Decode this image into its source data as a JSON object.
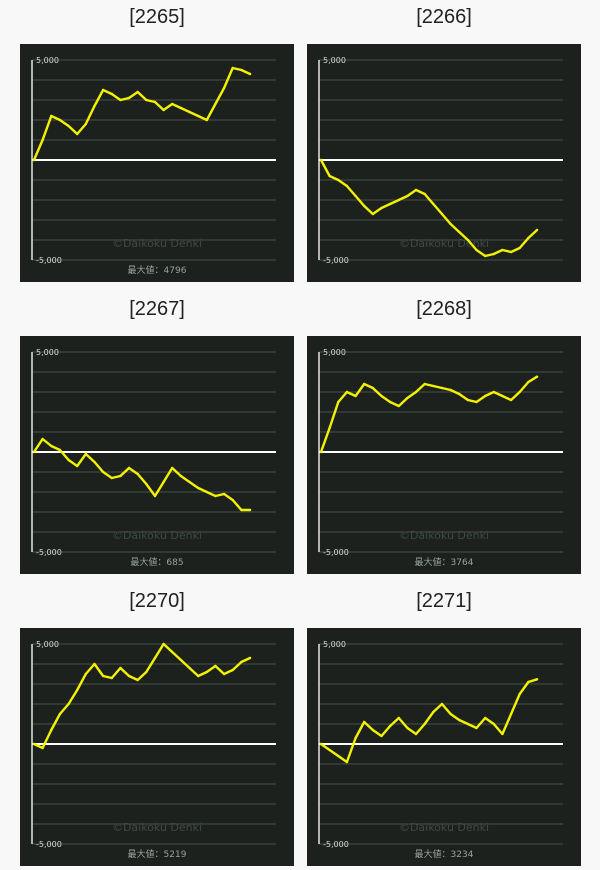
{
  "colors": {
    "background": "#f8f8f8",
    "chart_background": "#1c211d",
    "line": "#f2f200",
    "zero_line": "#ffffff",
    "grid": "#47504b"
  },
  "chart_data": [
    {
      "type": "line",
      "title": "[2265]",
      "ylim": [
        -5000,
        5000
      ],
      "yticks": [
        5000,
        -5000
      ],
      "ytick_labels": [
        "5,000",
        "-5,000"
      ],
      "watermark": "©Daikoku Denki",
      "max_label": "最大値：4796",
      "x": [
        0,
        4,
        8,
        12,
        16,
        20,
        24,
        28,
        32,
        36,
        40,
        44,
        48,
        52,
        56,
        60,
        64,
        68,
        72,
        76,
        80,
        84,
        88,
        92,
        96,
        100
      ],
      "values": [
        0,
        1000,
        2200,
        2000,
        1700,
        1300,
        1800,
        2700,
        3500,
        3300,
        3000,
        3100,
        3400,
        3000,
        2900,
        2500,
        2800,
        2600,
        2400,
        2200,
        2000,
        2800,
        3600,
        4600,
        4500,
        4300
      ]
    },
    {
      "type": "line",
      "title": "[2266]",
      "ylim": [
        -5000,
        5000
      ],
      "yticks": [
        5000,
        -5000
      ],
      "ytick_labels": [
        "5,000",
        "-5,000"
      ],
      "watermark": "©Daikoku Denki",
      "max_label": "",
      "x": [
        0,
        4,
        8,
        12,
        16,
        20,
        24,
        28,
        32,
        36,
        40,
        44,
        48,
        52,
        56,
        60,
        64,
        68,
        72,
        76,
        80,
        84,
        88,
        92,
        96,
        100
      ],
      "values": [
        0,
        -800,
        -1000,
        -1300,
        -1800,
        -2300,
        -2700,
        -2400,
        -2200,
        -2000,
        -1800,
        -1500,
        -1700,
        -2200,
        -2700,
        -3200,
        -3600,
        -4000,
        -4500,
        -4800,
        -4700,
        -4500,
        -4600,
        -4400,
        -3900,
        -3500
      ]
    },
    {
      "type": "line",
      "title": "[2267]",
      "ylim": [
        -5000,
        5000
      ],
      "yticks": [
        5000,
        -5000
      ],
      "ytick_labels": [
        "5,000",
        "-5,000"
      ],
      "watermark": "©Daikoku Denki",
      "max_label": "最大値：685",
      "x": [
        0,
        4,
        8,
        12,
        16,
        20,
        24,
        28,
        32,
        36,
        40,
        44,
        48,
        52,
        56,
        60,
        64,
        68,
        72,
        76,
        80,
        84,
        88,
        92,
        96,
        100
      ],
      "values": [
        0,
        650,
        300,
        100,
        -400,
        -700,
        -100,
        -500,
        -1000,
        -1300,
        -1200,
        -800,
        -1100,
        -1600,
        -2200,
        -1500,
        -800,
        -1200,
        -1500,
        -1800,
        -2000,
        -2200,
        -2100,
        -2400,
        -2900,
        -2900
      ]
    },
    {
      "type": "line",
      "title": "[2268]",
      "ylim": [
        -5000,
        5000
      ],
      "yticks": [
        5000,
        -5000
      ],
      "ytick_labels": [
        "5,000",
        "-5,000"
      ],
      "watermark": "©Daikoku Denki",
      "max_label": "最大値：3764",
      "x": [
        0,
        4,
        8,
        12,
        16,
        20,
        24,
        28,
        32,
        36,
        40,
        44,
        48,
        52,
        56,
        60,
        64,
        68,
        72,
        76,
        80,
        84,
        88,
        92,
        96,
        100
      ],
      "values": [
        0,
        1200,
        2500,
        3000,
        2800,
        3400,
        3200,
        2800,
        2500,
        2300,
        2700,
        3000,
        3400,
        3300,
        3200,
        3100,
        2900,
        2600,
        2500,
        2800,
        3000,
        2800,
        2600,
        3000,
        3500,
        3764
      ]
    },
    {
      "type": "line",
      "title": "[2270]",
      "ylim": [
        -5000,
        5000
      ],
      "yticks": [
        5000,
        -5000
      ],
      "ytick_labels": [
        "5,000",
        "-5,000"
      ],
      "watermark": "©Daikoku Denki",
      "max_label": "最大値：5219",
      "x": [
        0,
        4,
        8,
        12,
        16,
        20,
        24,
        28,
        32,
        36,
        40,
        44,
        48,
        52,
        56,
        60,
        64,
        68,
        72,
        76,
        80,
        84,
        88,
        92,
        96,
        100
      ],
      "values": [
        0,
        -200,
        700,
        1500,
        2000,
        2700,
        3500,
        4000,
        3400,
        3300,
        3800,
        3400,
        3200,
        3600,
        4300,
        5000,
        4600,
        4200,
        3800,
        3400,
        3600,
        3900,
        3500,
        3700,
        4100,
        4300
      ]
    },
    {
      "type": "line",
      "title": "[2271]",
      "ylim": [
        -5000,
        5000
      ],
      "yticks": [
        5000,
        -5000
      ],
      "ytick_labels": [
        "5,000",
        "-5,000"
      ],
      "watermark": "©Daikoku Denki",
      "max_label": "最大値：3234",
      "x": [
        0,
        4,
        8,
        12,
        16,
        20,
        24,
        28,
        32,
        36,
        40,
        44,
        48,
        52,
        56,
        60,
        64,
        68,
        72,
        76,
        80,
        84,
        88,
        92,
        96,
        100
      ],
      "values": [
        0,
        -300,
        -600,
        -900,
        300,
        1100,
        700,
        400,
        900,
        1300,
        800,
        500,
        1000,
        1600,
        2000,
        1500,
        1200,
        1000,
        800,
        1300,
        1000,
        500,
        1500,
        2500,
        3100,
        3234
      ]
    }
  ]
}
